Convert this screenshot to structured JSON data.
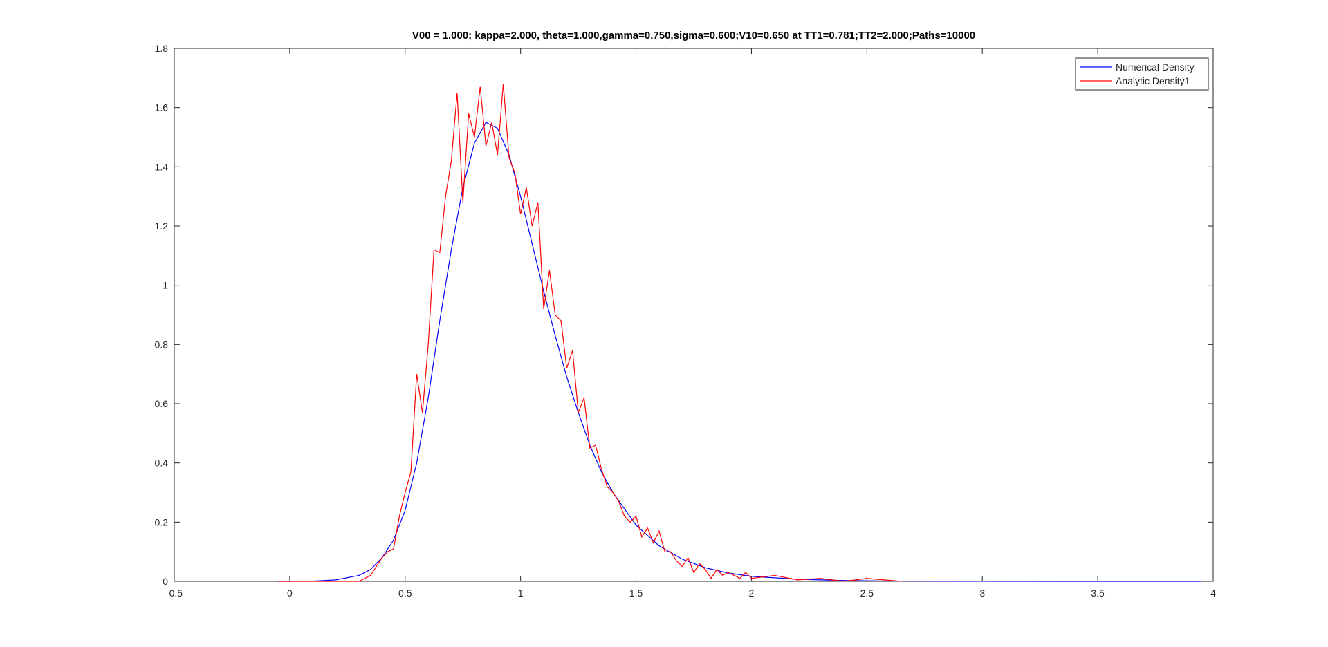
{
  "chart_data": {
    "type": "line",
    "title": "V00 = 1.000; kappa=2.000, theta=1.000,gamma=0.750,sigma=0.600;V10=0.650 at TT1=0.781;TT2=2.000;Paths=10000",
    "xlim": [
      -0.5,
      4
    ],
    "xticks": [
      -0.5,
      0,
      0.5,
      1,
      1.5,
      2,
      2.5,
      3,
      3.5,
      4
    ],
    "ylim": [
      0,
      1.8
    ],
    "yticks": [
      0,
      0.2,
      0.4,
      0.6,
      0.8,
      1,
      1.2,
      1.4,
      1.6,
      1.8
    ],
    "legend": "northeast",
    "series": [
      {
        "name": "Numerical Density",
        "color": "#0000ff",
        "x": [
          -0.05,
          0.0,
          0.1,
          0.2,
          0.3,
          0.35,
          0.4,
          0.45,
          0.5,
          0.55,
          0.6,
          0.65,
          0.7,
          0.75,
          0.8,
          0.85,
          0.9,
          0.95,
          1.0,
          1.05,
          1.1,
          1.15,
          1.2,
          1.25,
          1.3,
          1.35,
          1.4,
          1.5,
          1.6,
          1.7,
          1.8,
          1.9,
          2.0,
          2.2,
          2.4,
          2.6,
          2.8,
          3.0,
          3.5,
          3.95
        ],
        "values": [
          0,
          0,
          0.001,
          0.005,
          0.02,
          0.04,
          0.08,
          0.14,
          0.24,
          0.4,
          0.62,
          0.88,
          1.12,
          1.33,
          1.48,
          1.55,
          1.53,
          1.44,
          1.3,
          1.14,
          0.98,
          0.83,
          0.69,
          0.57,
          0.46,
          0.37,
          0.3,
          0.19,
          0.12,
          0.075,
          0.046,
          0.028,
          0.017,
          0.007,
          0.003,
          0.001,
          0.0005,
          0.0002,
          0,
          0
        ]
      },
      {
        "name": "Analytic Density1",
        "color": "#ff0000",
        "x": [
          -0.05,
          0.2,
          0.3,
          0.325,
          0.35,
          0.375,
          0.4,
          0.425,
          0.45,
          0.475,
          0.5,
          0.525,
          0.55,
          0.575,
          0.6,
          0.625,
          0.65,
          0.675,
          0.7,
          0.725,
          0.75,
          0.775,
          0.8,
          0.825,
          0.85,
          0.875,
          0.9,
          0.925,
          0.95,
          0.975,
          1.0,
          1.025,
          1.05,
          1.075,
          1.1,
          1.125,
          1.15,
          1.175,
          1.2,
          1.225,
          1.25,
          1.275,
          1.3,
          1.325,
          1.35,
          1.375,
          1.4,
          1.425,
          1.45,
          1.475,
          1.5,
          1.525,
          1.55,
          1.575,
          1.6,
          1.625,
          1.65,
          1.675,
          1.7,
          1.725,
          1.75,
          1.775,
          1.8,
          1.825,
          1.85,
          1.875,
          1.9,
          1.925,
          1.95,
          1.975,
          2.0,
          2.1,
          2.2,
          2.3,
          2.4,
          2.5,
          2.65
        ],
        "values": [
          0,
          0,
          0,
          0.01,
          0.02,
          0.05,
          0.08,
          0.1,
          0.11,
          0.22,
          0.3,
          0.37,
          0.7,
          0.57,
          0.8,
          1.12,
          1.11,
          1.3,
          1.42,
          1.65,
          1.28,
          1.58,
          1.5,
          1.67,
          1.47,
          1.55,
          1.44,
          1.68,
          1.43,
          1.38,
          1.24,
          1.33,
          1.2,
          1.28,
          0.92,
          1.05,
          0.9,
          0.88,
          0.72,
          0.78,
          0.57,
          0.62,
          0.45,
          0.46,
          0.38,
          0.32,
          0.3,
          0.27,
          0.22,
          0.2,
          0.22,
          0.15,
          0.18,
          0.13,
          0.17,
          0.1,
          0.1,
          0.07,
          0.05,
          0.08,
          0.03,
          0.06,
          0.04,
          0.01,
          0.04,
          0.02,
          0.03,
          0.02,
          0.01,
          0.03,
          0.01,
          0.02,
          0.005,
          0.01,
          0,
          0.01,
          0
        ]
      }
    ]
  }
}
